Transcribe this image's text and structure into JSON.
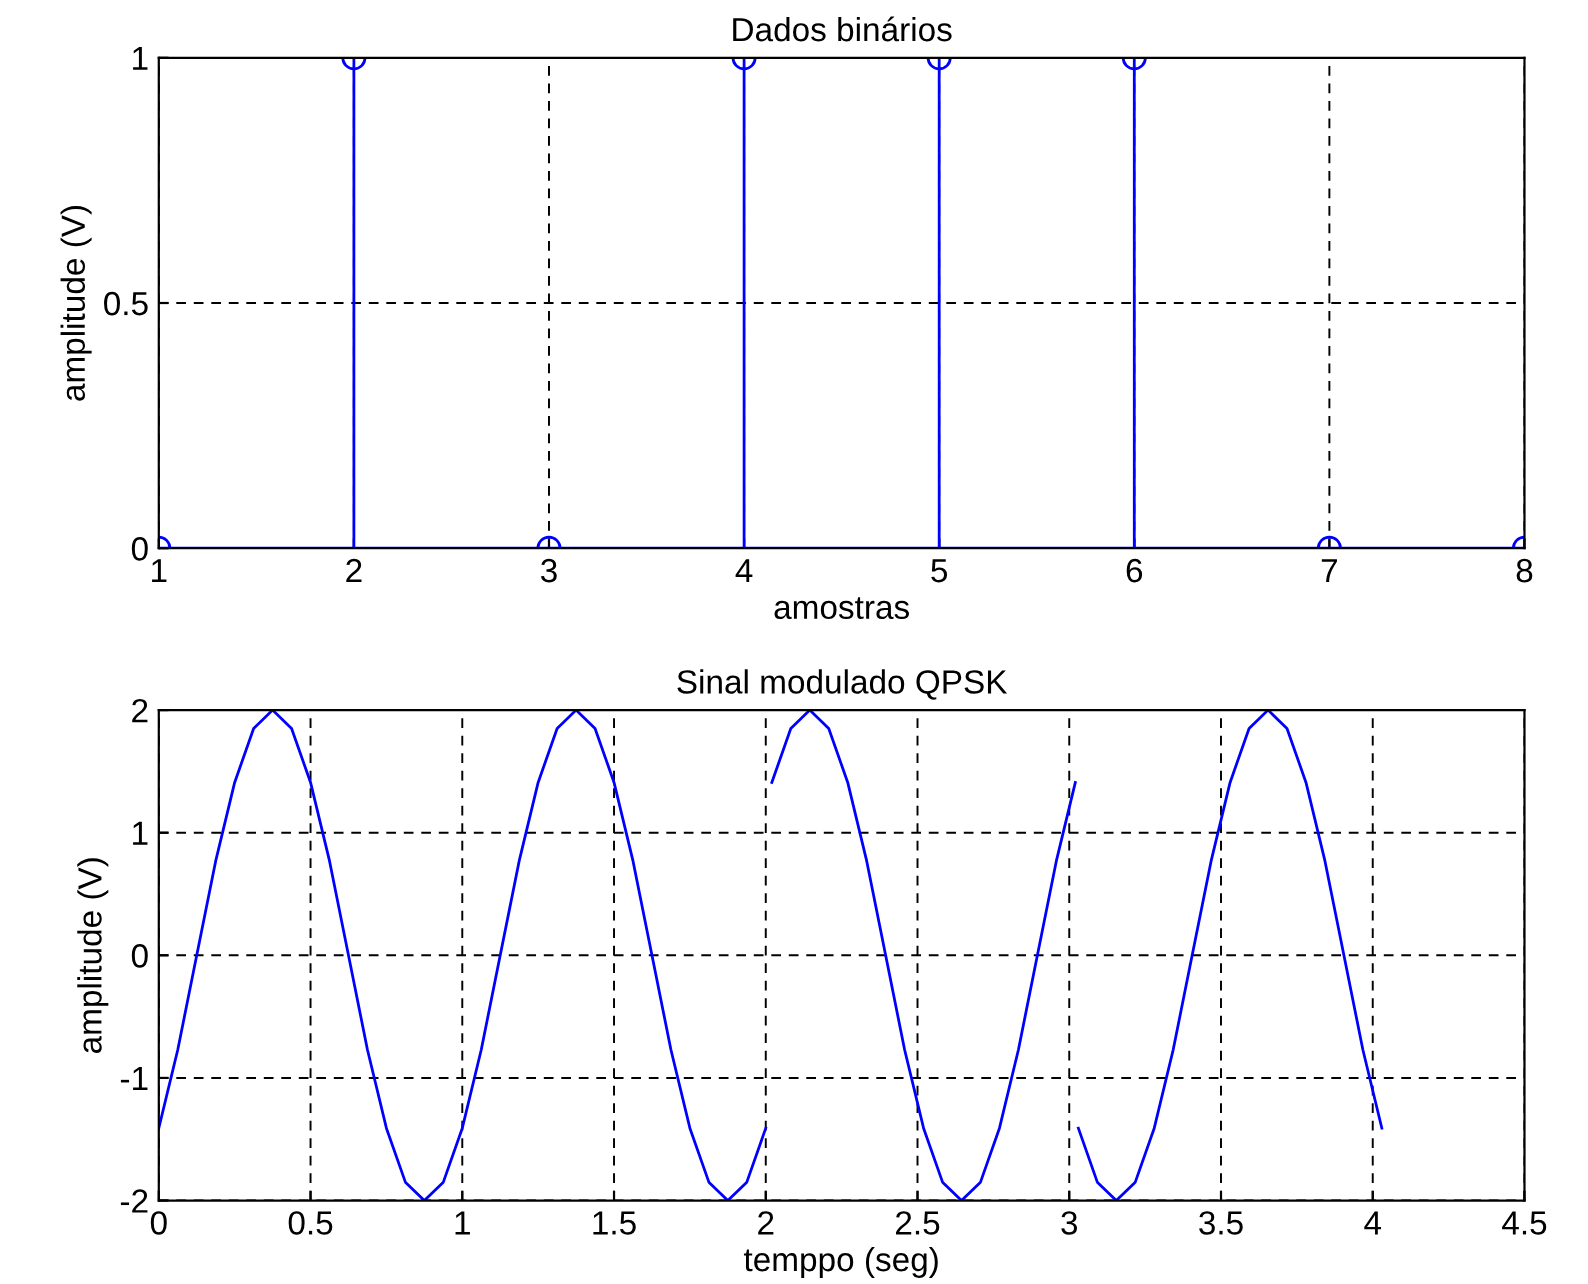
{
  "chart_data": [
    {
      "type": "lollipop",
      "title": "Dados binários",
      "xlabel": "amostras",
      "ylabel": "amplitude (V)",
      "marker": "circle",
      "grid": true,
      "x": [
        1,
        2,
        3,
        4,
        5,
        6,
        7,
        8
      ],
      "series": [
        {
          "color": "#0000ff",
          "values": [
            0,
            1,
            0,
            1,
            1,
            1,
            0,
            0
          ]
        }
      ],
      "xlim": [
        1,
        8
      ],
      "xticks": [
        1,
        2,
        3,
        4,
        5,
        6,
        7,
        8
      ],
      "ylim": [
        0,
        1
      ],
      "yticks": [
        0,
        0.5,
        1
      ]
    },
    {
      "type": "line",
      "title": "Sinal modulado QPSK",
      "xlabel": "temppo (seg)",
      "ylabel": "amplitude (V)",
      "grid": true,
      "series": [
        {
          "color": "#0000ff",
          "x": [
            0,
            0.0625,
            0.125,
            0.1875,
            0.25,
            0.3125,
            0.375,
            0.4375,
            0.5,
            0.5625,
            0.625,
            0.6875,
            0.75,
            0.8125,
            0.875,
            0.9375,
            1,
            1.0625,
            1.125,
            1.1875,
            1.25,
            1.3125,
            1.375,
            1.4375,
            1.5,
            1.5625,
            1.625,
            1.6875,
            1.75,
            1.8125,
            1.875,
            1.9375,
            2
          ],
          "values": [
            -1.41,
            -0.77,
            0,
            0.77,
            1.41,
            1.85,
            2,
            1.85,
            1.41,
            0.77,
            0,
            -0.77,
            -1.41,
            -1.85,
            -2,
            -1.85,
            -1.41,
            -0.77,
            0,
            0.77,
            1.41,
            1.85,
            2,
            1.85,
            1.41,
            0.77,
            0,
            -0.77,
            -1.41,
            -1.85,
            -2,
            -1.85,
            -1.41
          ]
        },
        {
          "color": "#0000ff",
          "x": [
            2.02,
            2.0825,
            2.145,
            2.2075,
            2.27,
            2.3325,
            2.395,
            2.4575,
            2.52,
            2.5825,
            2.645,
            2.7075,
            2.77,
            2.8325,
            2.895,
            2.9575,
            3.02
          ],
          "values": [
            1.41,
            1.85,
            2,
            1.85,
            1.41,
            0.77,
            0,
            -0.77,
            -1.41,
            -1.85,
            -2,
            -1.85,
            -1.41,
            -0.77,
            0,
            0.77,
            1.41
          ]
        },
        {
          "color": "#0000ff",
          "x": [
            3.03,
            3.0925,
            3.155,
            3.2175,
            3.28,
            3.3425,
            3.405,
            3.4675,
            3.53,
            3.5925,
            3.655,
            3.7175,
            3.78,
            3.8425,
            3.905,
            3.9675,
            4.03
          ],
          "values": [
            -1.41,
            -1.85,
            -2,
            -1.85,
            -1.41,
            -0.77,
            0,
            0.77,
            1.41,
            1.85,
            2,
            1.85,
            1.41,
            0.77,
            0,
            -0.77,
            -1.41
          ]
        }
      ],
      "xlim": [
        0,
        4.5
      ],
      "xticks": [
        0,
        0.5,
        1,
        1.5,
        2,
        2.5,
        3,
        3.5,
        4,
        4.5
      ],
      "ylim": [
        -2,
        2
      ],
      "yticks": [
        -2,
        -1,
        0,
        1,
        2
      ]
    }
  ]
}
